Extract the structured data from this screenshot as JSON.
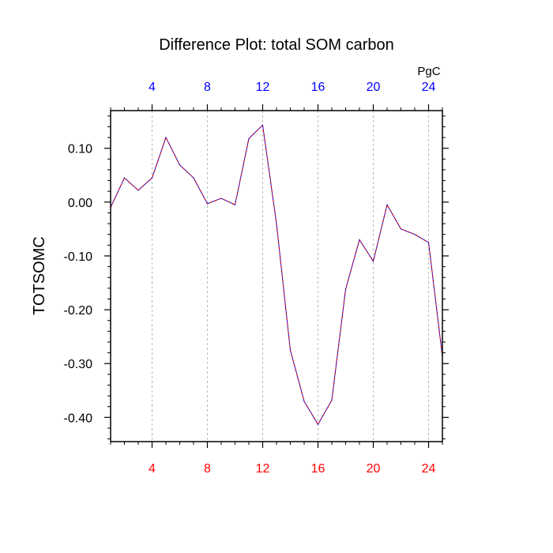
{
  "chart_data": {
    "type": "line",
    "title": "Difference Plot: total SOM carbon",
    "units_label": "PgC",
    "ylabel": "TOTSOMC",
    "xlabel": "",
    "xlim": [
      1,
      25
    ],
    "ylim": [
      -0.445,
      0.17
    ],
    "x_ticks": [
      4,
      8,
      12,
      16,
      20,
      24
    ],
    "x_tick_labels": [
      "4",
      "8",
      "12",
      "16",
      "20",
      "24"
    ],
    "y_ticks": [
      0.1,
      0.0,
      -0.1,
      -0.2,
      -0.3,
      -0.4
    ],
    "y_tick_labels": [
      "0.10",
      "0.00",
      "-0.10",
      "-0.20",
      "-0.30",
      "-0.40"
    ],
    "grid": "vertical dashed at major x ticks",
    "series": [
      {
        "x": [
          1,
          2,
          3,
          4,
          5,
          6,
          7,
          8,
          9,
          10,
          11,
          12,
          13,
          14,
          15,
          16,
          17,
          18,
          19,
          20,
          21,
          22,
          23,
          24,
          25
        ],
        "values": [
          -0.01,
          0.045,
          0.022,
          0.045,
          0.12,
          0.069,
          0.045,
          -0.003,
          0.007,
          -0.005,
          0.118,
          0.143,
          -0.04,
          -0.275,
          -0.37,
          -0.413,
          -0.368,
          -0.162,
          -0.07,
          -0.11,
          -0.005,
          -0.05,
          -0.06,
          -0.075,
          -0.287
        ],
        "color": "#2200cc",
        "dash_color": "#dd0000"
      }
    ],
    "colors": {
      "bottom_tick_labels": "#ff0000",
      "top_tick_labels": "#0000ff",
      "axes": "#000000",
      "grid": "#aaaaaa"
    }
  }
}
